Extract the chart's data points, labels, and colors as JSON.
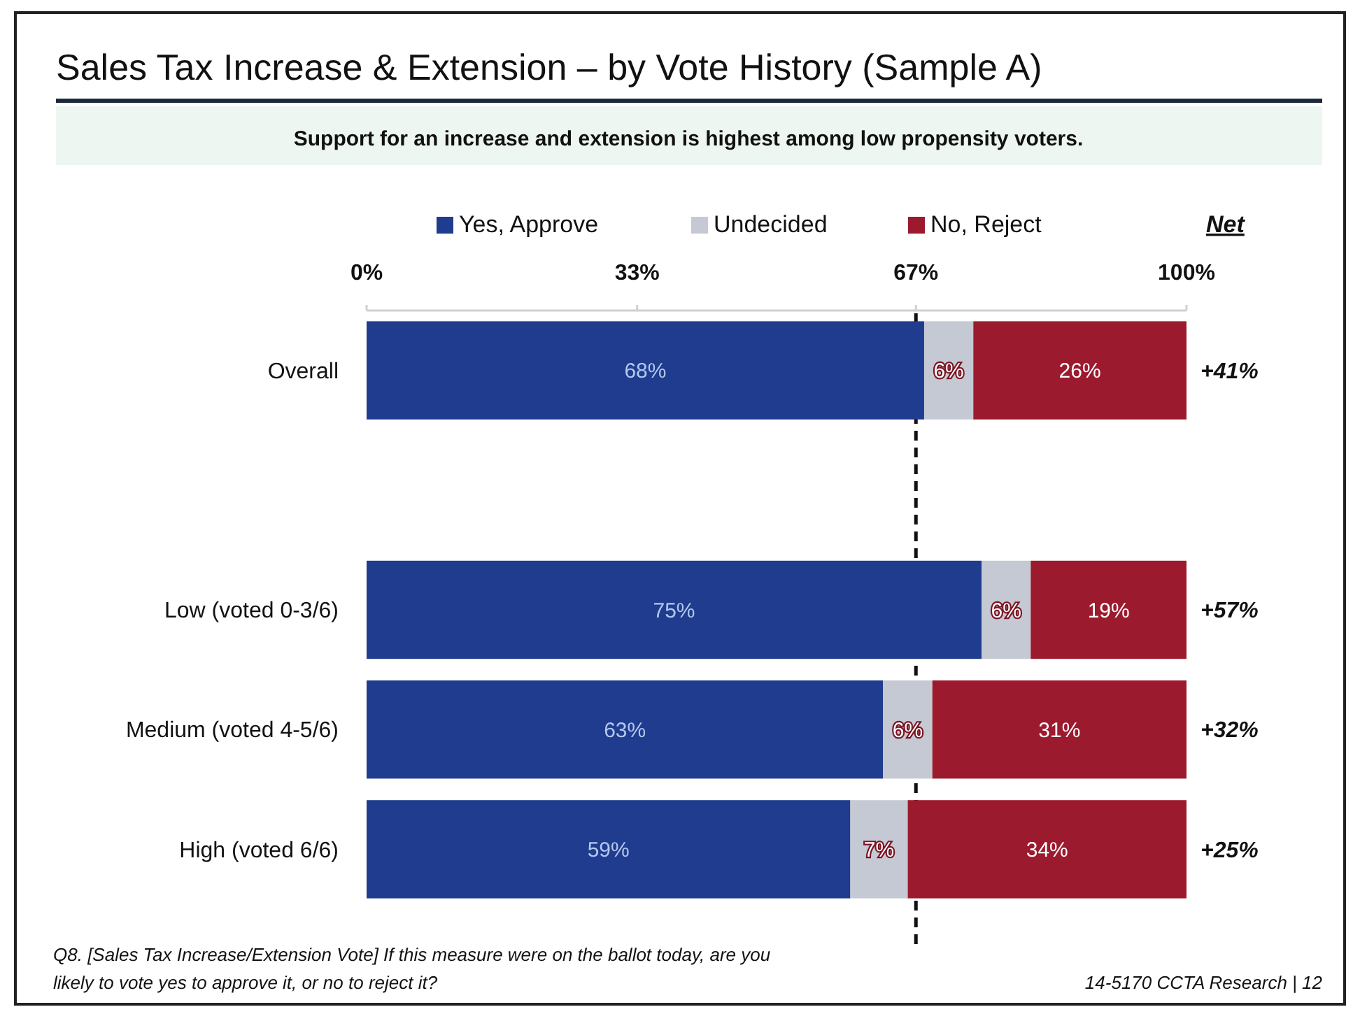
{
  "chart_data": {
    "type": "bar",
    "orientation": "horizontal",
    "stacked": true,
    "title": "Sales Tax Increase & Extension – by Vote History (Sample A)",
    "subtitle": "Support for an increase and extension is highest among low propensity voters.",
    "categories": [
      "Overall",
      null,
      "Low (voted 0-3/6)",
      "Medium (voted 4-5/6)",
      "High (voted 6/6)"
    ],
    "series": [
      {
        "name": "Yes, Approve",
        "color": "#1f3c8f",
        "values": [
          68,
          null,
          75,
          63,
          59
        ],
        "value_labels": [
          "68%",
          null,
          "75%",
          "63%",
          "59%"
        ]
      },
      {
        "name": "Undecided",
        "color": "#c5c9d3",
        "values": [
          6,
          null,
          6,
          6,
          7
        ],
        "value_labels": [
          "6%",
          null,
          "6%",
          "6%",
          "7%"
        ]
      },
      {
        "name": "No, Reject",
        "color": "#9c1a2e",
        "values": [
          26,
          null,
          19,
          31,
          34
        ],
        "value_labels": [
          "26%",
          null,
          "19%",
          "31%",
          "34%"
        ]
      }
    ],
    "xlim": [
      0,
      100
    ],
    "xticks": [
      {
        "value": 0,
        "label": "0%"
      },
      {
        "value": 33,
        "label": "33%"
      },
      {
        "value": 67,
        "label": "67%"
      },
      {
        "value": 100,
        "label": "100%"
      }
    ],
    "legend": "top",
    "ref_lines": [
      {
        "axis": "x",
        "value": 67,
        "color": "#111111",
        "line_style": "dashed"
      }
    ],
    "annotations": [
      "Net",
      "+41%",
      "+57%",
      "+32%",
      "+25%",
      "Q8. [Sales Tax Increase/Extension Vote] If this measure were on the ballot today, are you likely to vote yes to approve it, or no to reject it?",
      "14-5170 CCTA Research | 12"
    ]
  }
}
